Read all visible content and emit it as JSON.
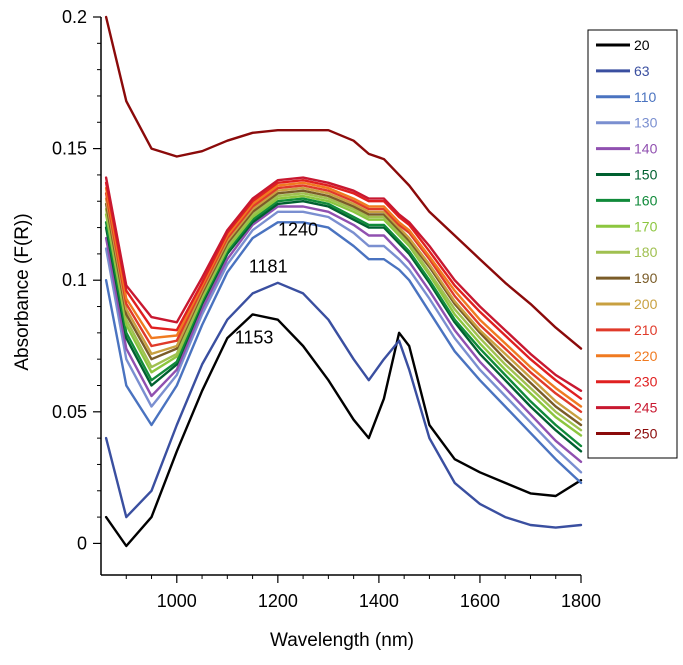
{
  "chart_data": {
    "type": "line",
    "xlabel": "Wavelength (nm)",
    "ylabel": "Absorbance (F(R))",
    "xlim": [
      850,
      1800
    ],
    "ylim": [
      -0.012,
      0.2
    ],
    "x_ticks": [
      1000,
      1200,
      1400,
      1600,
      1800
    ],
    "y_ticks": [
      0,
      0.05,
      0.1,
      0.15,
      0.2
    ],
    "y_tick_labels": [
      "0",
      "0.05",
      "0.1",
      "0.15",
      "0.2"
    ],
    "grid": false,
    "legend_position": "right",
    "annotations": [
      {
        "text": "1153",
        "x": 1153,
        "y": 0.076
      },
      {
        "text": "1181",
        "x": 1181,
        "y": 0.103
      },
      {
        "text": "1240",
        "x": 1240,
        "y": 0.117
      }
    ],
    "x": [
      860,
      900,
      950,
      1000,
      1050,
      1100,
      1150,
      1200,
      1250,
      1300,
      1350,
      1380,
      1410,
      1440,
      1460,
      1500,
      1550,
      1600,
      1650,
      1700,
      1750,
      1800
    ],
    "series": [
      {
        "name": "20",
        "color": "#000000",
        "values": [
          0.01,
          -0.001,
          0.01,
          0.035,
          0.058,
          0.078,
          0.087,
          0.085,
          0.075,
          0.062,
          0.047,
          0.04,
          0.055,
          0.08,
          0.075,
          0.045,
          0.032,
          0.027,
          0.023,
          0.019,
          0.018,
          0.024
        ]
      },
      {
        "name": "63",
        "color": "#3a4fa0",
        "values": [
          0.04,
          0.01,
          0.02,
          0.045,
          0.068,
          0.085,
          0.095,
          0.099,
          0.095,
          0.085,
          0.07,
          0.062,
          0.07,
          0.077,
          0.066,
          0.04,
          0.023,
          0.015,
          0.01,
          0.007,
          0.006,
          0.007
        ]
      },
      {
        "name": "110",
        "color": "#4a73c0",
        "values": [
          0.1,
          0.06,
          0.045,
          0.06,
          0.083,
          0.103,
          0.116,
          0.122,
          0.122,
          0.12,
          0.113,
          0.108,
          0.108,
          0.104,
          0.1,
          0.088,
          0.073,
          0.062,
          0.052,
          0.042,
          0.032,
          0.023
        ]
      },
      {
        "name": "130",
        "color": "#7a8fd0",
        "values": [
          0.112,
          0.07,
          0.052,
          0.064,
          0.087,
          0.106,
          0.119,
          0.126,
          0.126,
          0.124,
          0.118,
          0.113,
          0.113,
          0.108,
          0.104,
          0.093,
          0.078,
          0.066,
          0.056,
          0.046,
          0.036,
          0.027
        ]
      },
      {
        "name": "140",
        "color": "#9050b0",
        "values": [
          0.116,
          0.074,
          0.056,
          0.066,
          0.089,
          0.108,
          0.121,
          0.128,
          0.128,
          0.126,
          0.121,
          0.117,
          0.117,
          0.111,
          0.107,
          0.096,
          0.081,
          0.069,
          0.059,
          0.049,
          0.039,
          0.031
        ]
      },
      {
        "name": "150",
        "color": "#006030",
        "values": [
          0.12,
          0.078,
          0.06,
          0.068,
          0.091,
          0.11,
          0.122,
          0.129,
          0.13,
          0.128,
          0.123,
          0.12,
          0.12,
          0.114,
          0.11,
          0.099,
          0.084,
          0.072,
          0.062,
          0.052,
          0.043,
          0.035
        ]
      },
      {
        "name": "160",
        "color": "#108a3a",
        "values": [
          0.122,
          0.08,
          0.062,
          0.069,
          0.092,
          0.111,
          0.123,
          0.13,
          0.131,
          0.129,
          0.124,
          0.121,
          0.121,
          0.115,
          0.111,
          0.1,
          0.085,
          0.074,
          0.064,
          0.054,
          0.045,
          0.037
        ]
      },
      {
        "name": "170",
        "color": "#8cc63f",
        "values": [
          0.125,
          0.083,
          0.065,
          0.071,
          0.093,
          0.112,
          0.124,
          0.131,
          0.132,
          0.13,
          0.126,
          0.123,
          0.123,
          0.117,
          0.113,
          0.102,
          0.087,
          0.076,
          0.066,
          0.057,
          0.048,
          0.041
        ]
      },
      {
        "name": "180",
        "color": "#a0c050",
        "values": [
          0.127,
          0.085,
          0.067,
          0.072,
          0.094,
          0.113,
          0.125,
          0.132,
          0.133,
          0.131,
          0.127,
          0.124,
          0.124,
          0.118,
          0.114,
          0.103,
          0.089,
          0.078,
          0.068,
          0.059,
          0.05,
          0.043
        ]
      },
      {
        "name": "190",
        "color": "#7a5c28",
        "values": [
          0.129,
          0.087,
          0.07,
          0.074,
          0.095,
          0.114,
          0.126,
          0.133,
          0.134,
          0.132,
          0.128,
          0.125,
          0.125,
          0.119,
          0.115,
          0.105,
          0.091,
          0.08,
          0.07,
          0.061,
          0.052,
          0.045
        ]
      },
      {
        "name": "200",
        "color": "#c8a040",
        "values": [
          0.131,
          0.089,
          0.072,
          0.075,
          0.096,
          0.115,
          0.127,
          0.134,
          0.135,
          0.133,
          0.129,
          0.126,
          0.126,
          0.12,
          0.116,
          0.106,
          0.092,
          0.081,
          0.072,
          0.063,
          0.054,
          0.047
        ]
      },
      {
        "name": "210",
        "color": "#e03a2a",
        "values": [
          0.133,
          0.091,
          0.075,
          0.077,
          0.097,
          0.116,
          0.128,
          0.135,
          0.136,
          0.134,
          0.13,
          0.127,
          0.127,
          0.121,
          0.118,
          0.108,
          0.094,
          0.083,
          0.074,
          0.065,
          0.057,
          0.05
        ]
      },
      {
        "name": "220",
        "color": "#f07a20",
        "values": [
          0.135,
          0.093,
          0.078,
          0.079,
          0.098,
          0.117,
          0.129,
          0.136,
          0.137,
          0.135,
          0.131,
          0.128,
          0.128,
          0.122,
          0.119,
          0.109,
          0.096,
          0.085,
          0.076,
          0.067,
          0.059,
          0.052
        ]
      },
      {
        "name": "230",
        "color": "#e02020",
        "values": [
          0.137,
          0.096,
          0.082,
          0.081,
          0.099,
          0.118,
          0.13,
          0.137,
          0.138,
          0.136,
          0.133,
          0.13,
          0.13,
          0.124,
          0.121,
          0.111,
          0.098,
          0.088,
          0.079,
          0.07,
          0.062,
          0.055
        ]
      },
      {
        "name": "245",
        "color": "#c81830",
        "values": [
          0.139,
          0.098,
          0.086,
          0.084,
          0.101,
          0.119,
          0.131,
          0.138,
          0.139,
          0.137,
          0.134,
          0.131,
          0.131,
          0.125,
          0.122,
          0.113,
          0.1,
          0.09,
          0.081,
          0.072,
          0.064,
          0.058
        ]
      },
      {
        "name": "250",
        "color": "#8b0a0a",
        "values": [
          0.2,
          0.168,
          0.15,
          0.147,
          0.149,
          0.153,
          0.156,
          0.157,
          0.157,
          0.157,
          0.153,
          0.148,
          0.146,
          0.14,
          0.136,
          0.126,
          0.117,
          0.108,
          0.099,
          0.091,
          0.082,
          0.074
        ]
      }
    ]
  }
}
